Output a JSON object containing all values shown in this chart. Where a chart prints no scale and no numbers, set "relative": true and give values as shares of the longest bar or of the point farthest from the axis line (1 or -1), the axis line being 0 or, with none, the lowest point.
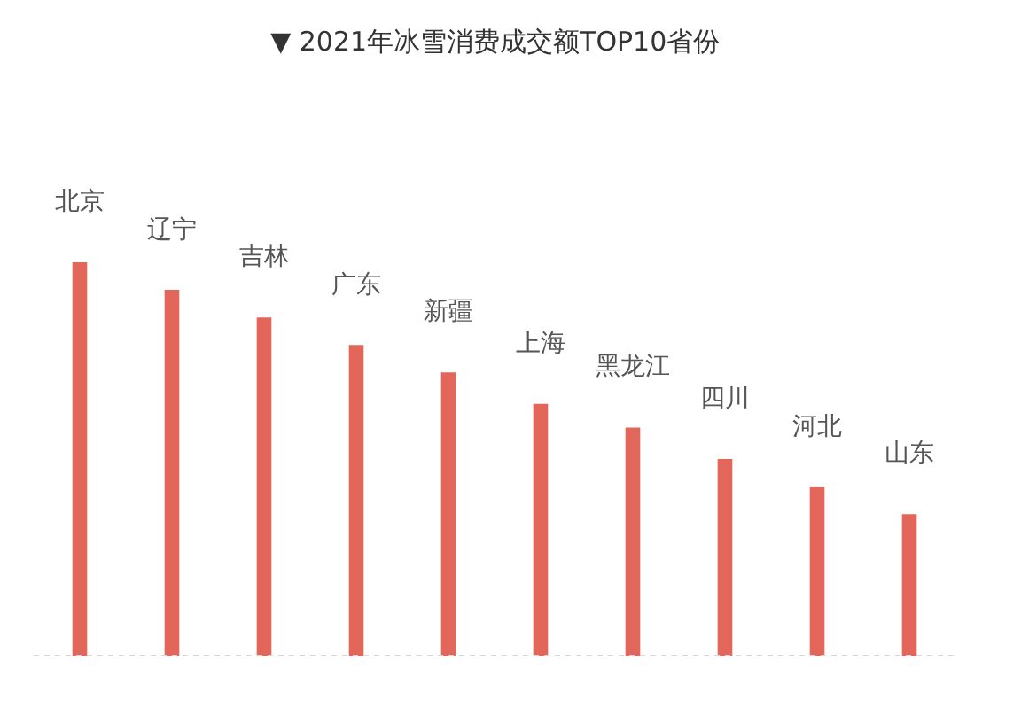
{
  "chart_data": {
    "type": "bar",
    "title": "▼ 2021年冰雪消费成交额TOP10省份",
    "categories": [
      "北京",
      "辽宁",
      "吉林",
      "广东",
      "新疆",
      "上海",
      "黑龙江",
      "四川",
      "河北",
      "山东"
    ],
    "values": [
      1,
      0.93,
      0.86,
      0.79,
      0.72,
      0.64,
      0.58,
      0.5,
      0.43,
      0.36
    ],
    "color": "#e2675a",
    "relative": true
  }
}
